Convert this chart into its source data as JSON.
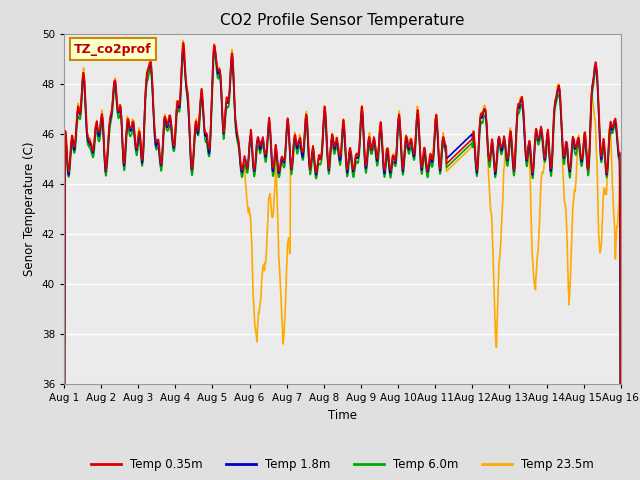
{
  "title": "CO2 Profile Sensor Temperature",
  "ylabel": "Senor Temperature (C)",
  "xlabel": "Time",
  "ylim": [
    36,
    50
  ],
  "yticks": [
    36,
    38,
    40,
    42,
    44,
    46,
    48,
    50
  ],
  "annotation_text": "TZ_co2prof",
  "annotation_color": "#bb0000",
  "annotation_bg": "#ffffcc",
  "annotation_edge": "#cc8800",
  "series": [
    {
      "label": "Temp 0.35m",
      "color": "#dd0000"
    },
    {
      "label": "Temp 1.8m",
      "color": "#0000cc"
    },
    {
      "label": "Temp 6.0m",
      "color": "#00aa00"
    },
    {
      "label": "Temp 23.5m",
      "color": "#ffaa00"
    }
  ],
  "bg_color": "#e0e0e0",
  "plot_bg": "#ebebeb",
  "n_days": 15,
  "pts_per_day": 144,
  "seed": 42
}
